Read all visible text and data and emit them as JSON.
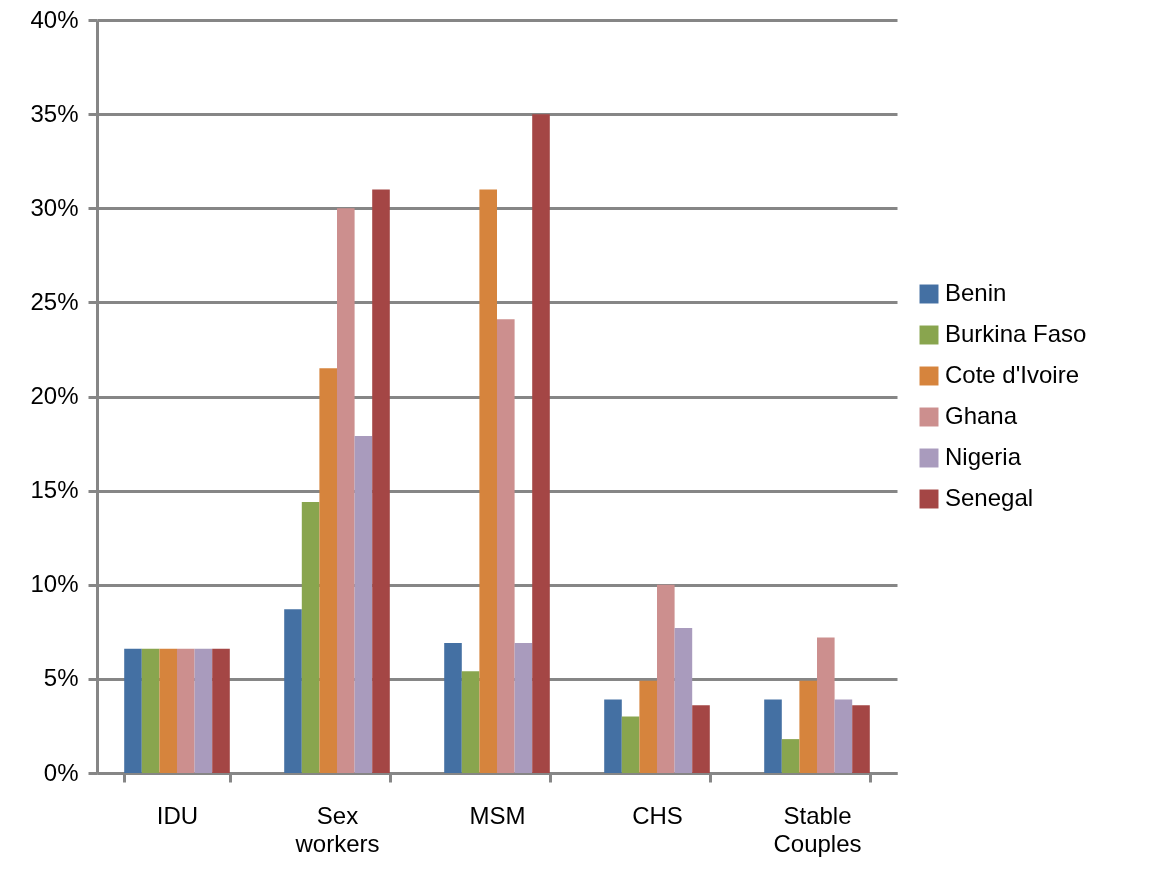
{
  "chart_data": {
    "type": "bar",
    "categories": [
      "IDU",
      "Sex workers",
      "MSM",
      "CHS",
      "Stable Couples"
    ],
    "series": [
      {
        "name": "Benin",
        "color": "#4470a3",
        "values": [
          6.6,
          8.7,
          6.9,
          3.9,
          3.9
        ]
      },
      {
        "name": "Burkina Faso",
        "color": "#89a54e",
        "values": [
          6.6,
          14.4,
          5.4,
          3.0,
          1.8
        ]
      },
      {
        "name": "Cote d'Ivoire",
        "color": "#d6843d",
        "values": [
          6.6,
          21.5,
          31.0,
          4.9,
          4.9
        ]
      },
      {
        "name": "Ghana",
        "color": "#cc8f8e",
        "values": [
          6.6,
          30.0,
          24.1,
          10.0,
          7.2
        ]
      },
      {
        "name": "Nigeria",
        "color": "#a99bbd",
        "values": [
          6.6,
          17.9,
          6.9,
          7.7,
          3.9
        ]
      },
      {
        "name": "Senegal",
        "color": "#a44645",
        "values": [
          6.6,
          31.0,
          35.0,
          3.6,
          3.6
        ]
      }
    ],
    "ylim": [
      0,
      40
    ],
    "yticks": [
      {
        "value": 0,
        "label": "0%"
      },
      {
        "value": 5,
        "label": "5%"
      },
      {
        "value": 10,
        "label": "10%"
      },
      {
        "value": 15,
        "label": "15%"
      },
      {
        "value": 20,
        "label": "20%"
      },
      {
        "value": 25,
        "label": "25%"
      },
      {
        "value": 30,
        "label": "30%"
      },
      {
        "value": 35,
        "label": "35%"
      },
      {
        "value": 40,
        "label": "40%"
      }
    ],
    "grid": "y",
    "legend": "right"
  }
}
